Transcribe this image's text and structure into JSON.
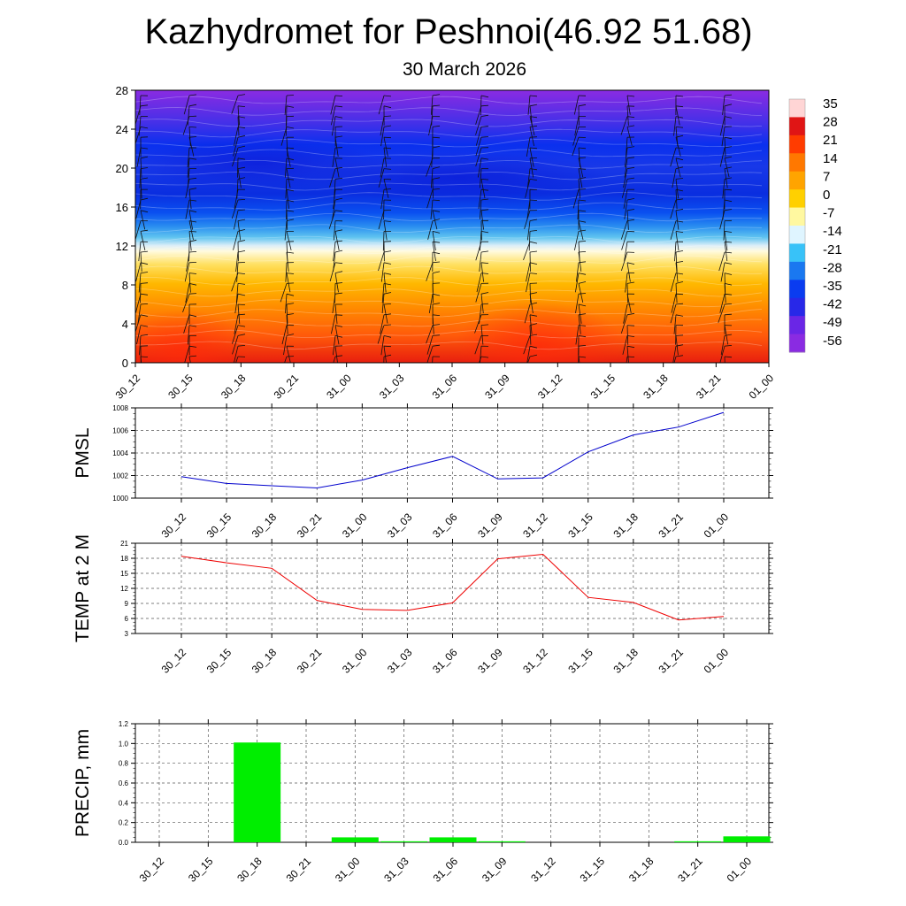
{
  "title": "Kazhydromet for Peshnoi(46.92 51.68)",
  "subtitle": "30 March 2026",
  "time_labels": [
    "30_12",
    "30_15",
    "30_18",
    "30_21",
    "31_00",
    "31_03",
    "31_06",
    "31_09",
    "31_12",
    "31_15",
    "31_18",
    "31_21",
    "01_00"
  ],
  "chart_data": [
    {
      "type": "heatmap",
      "name": "temperature-cross-section",
      "y_ticks": [
        0,
        4,
        8,
        12,
        16,
        20,
        24,
        28
      ],
      "ylim": [
        0,
        28
      ],
      "x": [
        "30_12",
        "30_15",
        "30_18",
        "30_21",
        "31_00",
        "31_03",
        "31_06",
        "31_09",
        "31_12",
        "31_15",
        "31_18",
        "31_21",
        "01_00"
      ],
      "colorbar_labels": [
        "35",
        "28",
        "21",
        "14",
        "7",
        "0",
        "-7",
        "-14",
        "-21",
        "-28",
        "-35",
        "-42",
        "-49",
        "-56"
      ],
      "colorbar_stops": [
        "#ffd5d5",
        "#e01515",
        "#ff3c00",
        "#ff7800",
        "#ffa400",
        "#ffd000",
        "#fff8a0",
        "#dff5ff",
        "#38c2f8",
        "#1a78f0",
        "#0a3cf0",
        "#2828e8",
        "#6a26e6",
        "#8a2be2"
      ],
      "wind_barbs": true
    },
    {
      "type": "line",
      "name": "pmsl",
      "ylabel": "PMSL",
      "x": [
        "30_12",
        "30_15",
        "30_18",
        "30_21",
        "31_00",
        "31_03",
        "31_06",
        "31_09",
        "31_12",
        "31_15",
        "31_18",
        "31_21",
        "01_00"
      ],
      "values": [
        1001.9,
        1001.3,
        1001.1,
        1000.9,
        1001.6,
        1002.7,
        1003.7,
        1001.7,
        1001.8,
        1004.1,
        1005.6,
        1006.3,
        1007.6
      ],
      "ylim": [
        1000,
        1008
      ],
      "y_ticks": [
        1000,
        1002,
        1004,
        1006,
        1008
      ],
      "color": "#0000cc"
    },
    {
      "type": "line",
      "name": "temp-2m",
      "ylabel": "TEMP at 2 M",
      "x": [
        "30_12",
        "30_15",
        "30_18",
        "30_21",
        "31_00",
        "31_03",
        "31_06",
        "31_09",
        "31_12",
        "31_15",
        "31_18",
        "31_21",
        "01_00"
      ],
      "values": [
        18.4,
        17.1,
        16.0,
        9.6,
        7.8,
        7.6,
        9.1,
        17.9,
        18.8,
        10.2,
        9.2,
        5.7,
        6.4
      ],
      "ylim": [
        3,
        21
      ],
      "y_ticks": [
        3,
        6,
        9,
        12,
        15,
        18,
        21
      ],
      "color": "#ee0000"
    },
    {
      "type": "bar",
      "name": "precip",
      "ylabel": "PRECIP, mm",
      "categories": [
        "30_12",
        "30_15",
        "30_18",
        "30_21",
        "31_00",
        "31_03",
        "31_06",
        "31_09",
        "31_12",
        "31_15",
        "31_18",
        "31_21",
        "01_00"
      ],
      "values": [
        0,
        0,
        1.01,
        0,
        0.05,
        0.01,
        0.05,
        0.01,
        0,
        0,
        0,
        0.01,
        0.06
      ],
      "ylim": [
        0,
        1.2
      ],
      "y_ticks": [
        "0.0",
        "0.2",
        "0.4",
        "0.6",
        "0.8",
        "1.0",
        "1.2"
      ],
      "color": "#00ee00"
    }
  ]
}
